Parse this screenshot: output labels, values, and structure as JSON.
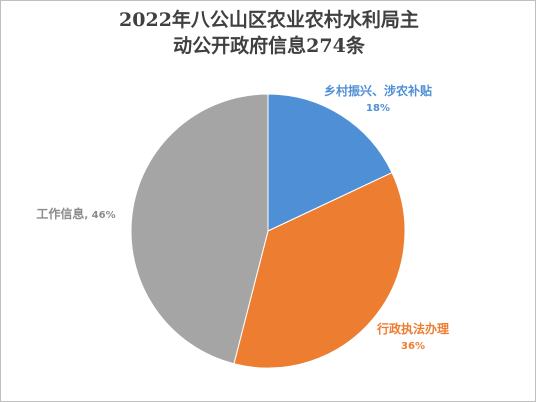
{
  "chart_data": {
    "type": "pie",
    "title": "2022年八公山区农业农村水利局主动公开政府信息274条",
    "categories": [
      "乡村振兴、涉农补贴",
      "行政执法办理",
      "工作信息"
    ],
    "values": [
      18,
      36,
      46
    ],
    "value_labels": [
      "18%",
      "36%",
      "46%"
    ],
    "label_separator": ", ",
    "colors": [
      "#4f8fd6",
      "#ed7d31",
      "#a5a5a5"
    ]
  }
}
